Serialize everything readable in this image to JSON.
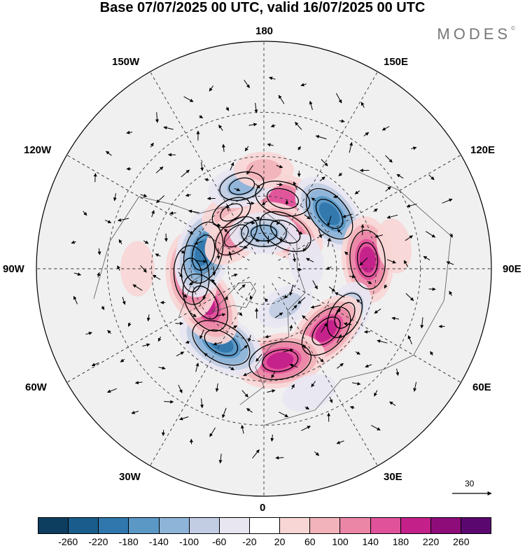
{
  "title": "Base 07/07/2025 00 UTC, valid 16/07/2025 00 UTC",
  "brand": "MODES",
  "brand_mark": "©",
  "longitude_labels": {
    "top": "180",
    "bottom": "0",
    "left": "90W",
    "right": "90E",
    "upper_left_1": "150W",
    "upper_left_2": "120W",
    "upper_right_1": "150E",
    "upper_right_2": "120E",
    "lower_left_1": "60W",
    "lower_left_2": "30W",
    "lower_right_1": "60E",
    "lower_right_2": "30E"
  },
  "vector_scale": {
    "label": "30"
  },
  "colorbar": {
    "ticks": [
      "-260",
      "-220",
      "-180",
      "-140",
      "-100",
      "-60",
      "-20",
      "20",
      "60",
      "100",
      "140",
      "180",
      "220",
      "260"
    ],
    "colors": [
      "#0d3d5f",
      "#1a5d8c",
      "#3077ad",
      "#5b98c6",
      "#8eb4d8",
      "#c2cde3",
      "#e8e6f1",
      "#ffffff",
      "#f8d6d6",
      "#f2b3bb",
      "#eb86a6",
      "#e0529a",
      "#c4208a",
      "#8e0c7a",
      "#5a0870"
    ]
  },
  "map_data": {
    "projection": "north-polar-stereographic",
    "anomalies": [
      {
        "lon": 165,
        "lat": 60,
        "value": 180
      },
      {
        "lon": 130,
        "lat": 55,
        "value": -200
      },
      {
        "lon": 150,
        "lat": 72,
        "value": 180
      },
      {
        "lon": 95,
        "lat": 48,
        "value": 200
      },
      {
        "lon": 60,
        "lat": 52,
        "value": -140
      },
      {
        "lon": 45,
        "lat": 54,
        "value": 200
      },
      {
        "lon": 10,
        "lat": 52,
        "value": 220
      },
      {
        "lon": 330,
        "lat": 55,
        "value": -220
      },
      {
        "lon": 300,
        "lat": 62,
        "value": 220
      },
      {
        "lon": 275,
        "lat": 60,
        "value": 200
      },
      {
        "lon": 255,
        "lat": 64,
        "value": -220
      },
      {
        "lon": 210,
        "lat": 63,
        "value": 100
      },
      {
        "lon": 220,
        "lat": 72,
        "value": 140
      },
      {
        "lon": 195,
        "lat": 55,
        "value": -120
      },
      {
        "lon": 180,
        "lat": 75,
        "value": -120
      },
      {
        "lon": 30,
        "lat": 72,
        "value": -80
      },
      {
        "lon": 100,
        "lat": 72,
        "value": -60
      },
      {
        "lon": 180,
        "lat": 50,
        "value": 80
      },
      {
        "lon": 100,
        "lat": 38,
        "value": 60
      },
      {
        "lon": 20,
        "lat": 38,
        "value": -60
      },
      {
        "lon": 270,
        "lat": 40,
        "value": 60
      }
    ]
  }
}
